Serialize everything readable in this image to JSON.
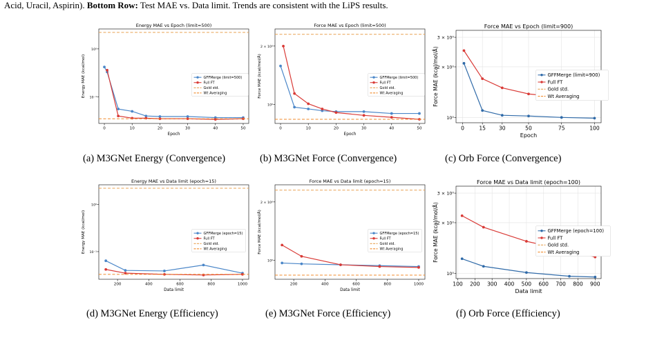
{
  "header": {
    "prefix": "Acid, Uracil, Aspirin).",
    "bold": "Bottom Row:",
    "rest": "Test MAE vs. Data limit. Trends are consistent with the LiPS results."
  },
  "captions": [
    "(a) M3GNet Energy (Convergence)",
    "(b) M3GNet Force (Convergence)",
    "(c) Orb Force (Convergence)",
    "(d) M3GNet Energy (Efficiency)",
    "(e) M3GNet Force (Efficiency)",
    "(f) Orb Force (Efficiency)"
  ],
  "colors": {
    "gffmerge": "#4a86c8",
    "fullft": "#d93a36",
    "gold": "#e8a050",
    "wtavg": "#f08a2a"
  },
  "chart_data": [
    {
      "type": "line",
      "title": "Energy MAE vs Epoch (limit=500)",
      "xlabel": "Epoch",
      "ylabel": "Energy MAE (kcal/mol)",
      "yscale": "log",
      "xlim": [
        -2,
        52
      ],
      "ylim": [
        0.028,
        2.6
      ],
      "xticks": [
        0,
        10,
        20,
        30,
        40,
        50
      ],
      "xtick_labels": [
        "0",
        "10",
        "20",
        "30",
        "40",
        "50"
      ],
      "yticks": [
        1,
        0.1
      ],
      "ytick_labels": [
        "10⁰",
        "10⁻¹"
      ],
      "grid": false,
      "legend_loc": "center-right",
      "series": [
        {
          "name": "GFFMerge (limit=500)",
          "style": "marker",
          "color": "#4a86c8",
          "x": [
            0,
            1,
            5,
            10,
            15,
            20,
            30,
            40,
            50
          ],
          "y": [
            0.42,
            0.33,
            0.056,
            0.05,
            0.04,
            0.039,
            0.039,
            0.037,
            0.037
          ]
        },
        {
          "name": "Full FT",
          "style": "marker",
          "color": "#d93a36",
          "x": [
            1,
            5,
            10,
            15,
            20,
            30,
            40,
            50
          ],
          "y": [
            0.36,
            0.04,
            0.036,
            0.036,
            0.035,
            0.035,
            0.034,
            0.035
          ]
        },
        {
          "name": "Gold std.",
          "style": "hline",
          "color": "#e8a050",
          "y": 2.2
        },
        {
          "name": "Wt Averaging",
          "style": "hline",
          "color": "#f08a2a",
          "y": 0.035
        }
      ]
    },
    {
      "type": "line",
      "title": "Force MAE vs Epoch (limit=500)",
      "xlabel": "Epoch",
      "ylabel": "Force MAE (kcal/mol/Å)",
      "yscale": "log",
      "xlim": [
        -2,
        52
      ],
      "ylim": [
        0.8,
        2.45
      ],
      "xticks": [
        0,
        10,
        20,
        30,
        40,
        50
      ],
      "xtick_labels": [
        "0",
        "10",
        "20",
        "30",
        "40",
        "50"
      ],
      "yticks": [
        2,
        1
      ],
      "ytick_labels": [
        "2 × 10⁰",
        "10⁰"
      ],
      "grid": false,
      "legend_loc": "center-right",
      "series": [
        {
          "name": "GFFMerge (limit=500)",
          "style": "marker",
          "color": "#4a86c8",
          "x": [
            0,
            5,
            10,
            15,
            20,
            30,
            40,
            50
          ],
          "y": [
            1.58,
            0.97,
            0.95,
            0.93,
            0.92,
            0.92,
            0.9,
            0.9
          ]
        },
        {
          "name": "Full FT",
          "style": "marker",
          "color": "#d93a36",
          "x": [
            1,
            5,
            10,
            15,
            20,
            30,
            40,
            50
          ],
          "y": [
            2.0,
            1.14,
            1.01,
            0.95,
            0.91,
            0.88,
            0.86,
            0.84
          ]
        },
        {
          "name": "Gold std.",
          "style": "hline",
          "color": "#e8a050",
          "y": 2.3
        },
        {
          "name": "Wt Averaging",
          "style": "hline",
          "color": "#f08a2a",
          "y": 0.84
        }
      ]
    },
    {
      "type": "line",
      "title": "Force MAE vs Epoch (limit=900)",
      "xlabel": "Epoch",
      "ylabel": "Force MAE (kcal/mol/Å)",
      "yscale": "log",
      "xlim": [
        -5,
        105
      ],
      "ylim": [
        0.93,
        3.3
      ],
      "xticks": [
        0,
        15,
        30,
        50,
        75,
        100
      ],
      "xtick_labels": [
        "0",
        "15",
        "30",
        "50",
        "75",
        "100"
      ],
      "yticks": [
        3,
        2,
        1
      ],
      "ytick_labels": [
        "3 × 10⁰",
        "2 × 10⁰",
        "10⁰"
      ],
      "grid": true,
      "legend_loc": "center-right",
      "series": [
        {
          "name": "GFFMerge (limit=900)",
          "style": "marker",
          "color": "#2f6aa8",
          "x": [
            1,
            15,
            30,
            50,
            75,
            100
          ],
          "y": [
            2.1,
            1.1,
            1.03,
            1.02,
            1.0,
            0.99
          ]
        },
        {
          "name": "Full FT",
          "style": "marker",
          "color": "#d93a36",
          "x": [
            1,
            15,
            30,
            50,
            75,
            100
          ],
          "y": [
            2.5,
            1.7,
            1.5,
            1.38,
            1.32,
            1.3
          ]
        },
        {
          "name": "Gold std.",
          "style": "legendonly",
          "color": "#e8a050"
        },
        {
          "name": "Wt Averaging",
          "style": "legendonly",
          "color": "#f08a2a"
        }
      ]
    },
    {
      "type": "line",
      "title": "Energy MAE vs Data limit (epoch=15)",
      "xlabel": "Data limit",
      "ylabel": "Energy MAE (kcal/mol)",
      "yscale": "log",
      "xlim": [
        80,
        1040
      ],
      "ylim": [
        0.026,
        2.6
      ],
      "xticks": [
        200,
        400,
        600,
        800,
        1000
      ],
      "xtick_labels": [
        "200",
        "400",
        "600",
        "800",
        "1000"
      ],
      "yticks": [
        1,
        0.1
      ],
      "ytick_labels": [
        "10⁰",
        "10⁻¹"
      ],
      "grid": false,
      "legend_loc": "center-right",
      "series": [
        {
          "name": "GFFMerge (epoch=15)",
          "style": "marker",
          "color": "#4a86c8",
          "x": [
            125,
            250,
            500,
            750,
            1000
          ],
          "y": [
            0.064,
            0.04,
            0.039,
            0.052,
            0.035
          ]
        },
        {
          "name": "Full FT",
          "style": "marker",
          "color": "#d93a36",
          "x": [
            125,
            250,
            500,
            750,
            1000
          ],
          "y": [
            0.042,
            0.035,
            0.033,
            0.032,
            0.033
          ]
        },
        {
          "name": "Gold std.",
          "style": "hline",
          "color": "#e8a050",
          "y": 2.2
        },
        {
          "name": "Wt Averaging",
          "style": "hline",
          "color": "#f08a2a",
          "y": 0.033
        }
      ]
    },
    {
      "type": "line",
      "title": "Force MAE vs Data limit (epoch=15)",
      "xlabel": "Data limit",
      "ylabel": "Force MAE (kcal/mol/Å)",
      "yscale": "log",
      "xlim": [
        80,
        1040
      ],
      "ylim": [
        0.8,
        2.45
      ],
      "xticks": [
        200,
        400,
        600,
        800,
        1000
      ],
      "xtick_labels": [
        "200",
        "400",
        "600",
        "800",
        "1000"
      ],
      "yticks": [
        2,
        1
      ],
      "ytick_labels": [
        "2 × 10⁰",
        "10⁰"
      ],
      "grid": false,
      "legend_loc": "center-right",
      "series": [
        {
          "name": "GFFMerge (epoch=15)",
          "style": "marker",
          "color": "#4a86c8",
          "x": [
            125,
            250,
            500,
            750,
            1000
          ],
          "y": [
            0.97,
            0.96,
            0.95,
            0.94,
            0.93
          ]
        },
        {
          "name": "Full FT",
          "style": "marker",
          "color": "#d93a36",
          "x": [
            125,
            250,
            500,
            750,
            1000
          ],
          "y": [
            1.2,
            1.05,
            0.95,
            0.93,
            0.92
          ]
        },
        {
          "name": "Gold std.",
          "style": "hline",
          "color": "#e8a050",
          "y": 2.3
        },
        {
          "name": "Wt Averaging",
          "style": "hline",
          "color": "#f08a2a",
          "y": 0.84
        }
      ]
    },
    {
      "type": "line",
      "title": "Force MAE vs Data limit (epoch=100)",
      "xlabel": "Data limit",
      "ylabel": "Force MAE (kcal/mol/Å)",
      "yscale": "log",
      "xlim": [
        90,
        935
      ],
      "ylim": [
        0.93,
        3.3
      ],
      "xticks": [
        100,
        200,
        300,
        400,
        500,
        600,
        700,
        800,
        900
      ],
      "xtick_labels": [
        "100",
        "200",
        "300",
        "400",
        "500",
        "600",
        "700",
        "800",
        "900"
      ],
      "yticks": [
        3,
        2,
        1
      ],
      "ytick_labels": [
        "3 × 10⁰",
        "2 × 10⁰",
        "10⁰"
      ],
      "grid": true,
      "legend_loc": "center-right",
      "series": [
        {
          "name": "GFFMerge (epoch=100)",
          "style": "marker",
          "color": "#2f6aa8",
          "x": [
            125,
            250,
            500,
            750,
            900
          ],
          "y": [
            1.22,
            1.1,
            1.01,
            0.96,
            0.95
          ]
        },
        {
          "name": "Full FT",
          "style": "marker",
          "color": "#d93a36",
          "x": [
            125,
            250,
            500,
            750,
            900
          ],
          "y": [
            2.2,
            1.88,
            1.55,
            1.36,
            1.25
          ]
        },
        {
          "name": "Gold std.",
          "style": "legendonly",
          "color": "#e8a050"
        },
        {
          "name": "Wt Averaging",
          "style": "legendonly",
          "color": "#f08a2a"
        }
      ]
    }
  ]
}
